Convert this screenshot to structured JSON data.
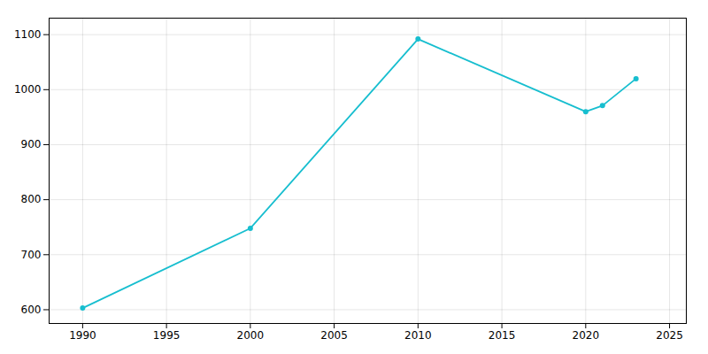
{
  "chart_data": {
    "type": "line",
    "x": [
      1990,
      2000,
      2010,
      2020,
      2021,
      2023
    ],
    "values": [
      603,
      748,
      1092,
      960,
      971,
      1020
    ],
    "color": "#17becf",
    "marker": "o",
    "xlim": [
      1988,
      2026
    ],
    "ylim": [
      575,
      1130
    ],
    "xticks": [
      1990,
      1995,
      2000,
      2005,
      2010,
      2015,
      2020,
      2025
    ],
    "yticks": [
      600,
      700,
      800,
      900,
      1000,
      1100
    ],
    "grid": true
  }
}
